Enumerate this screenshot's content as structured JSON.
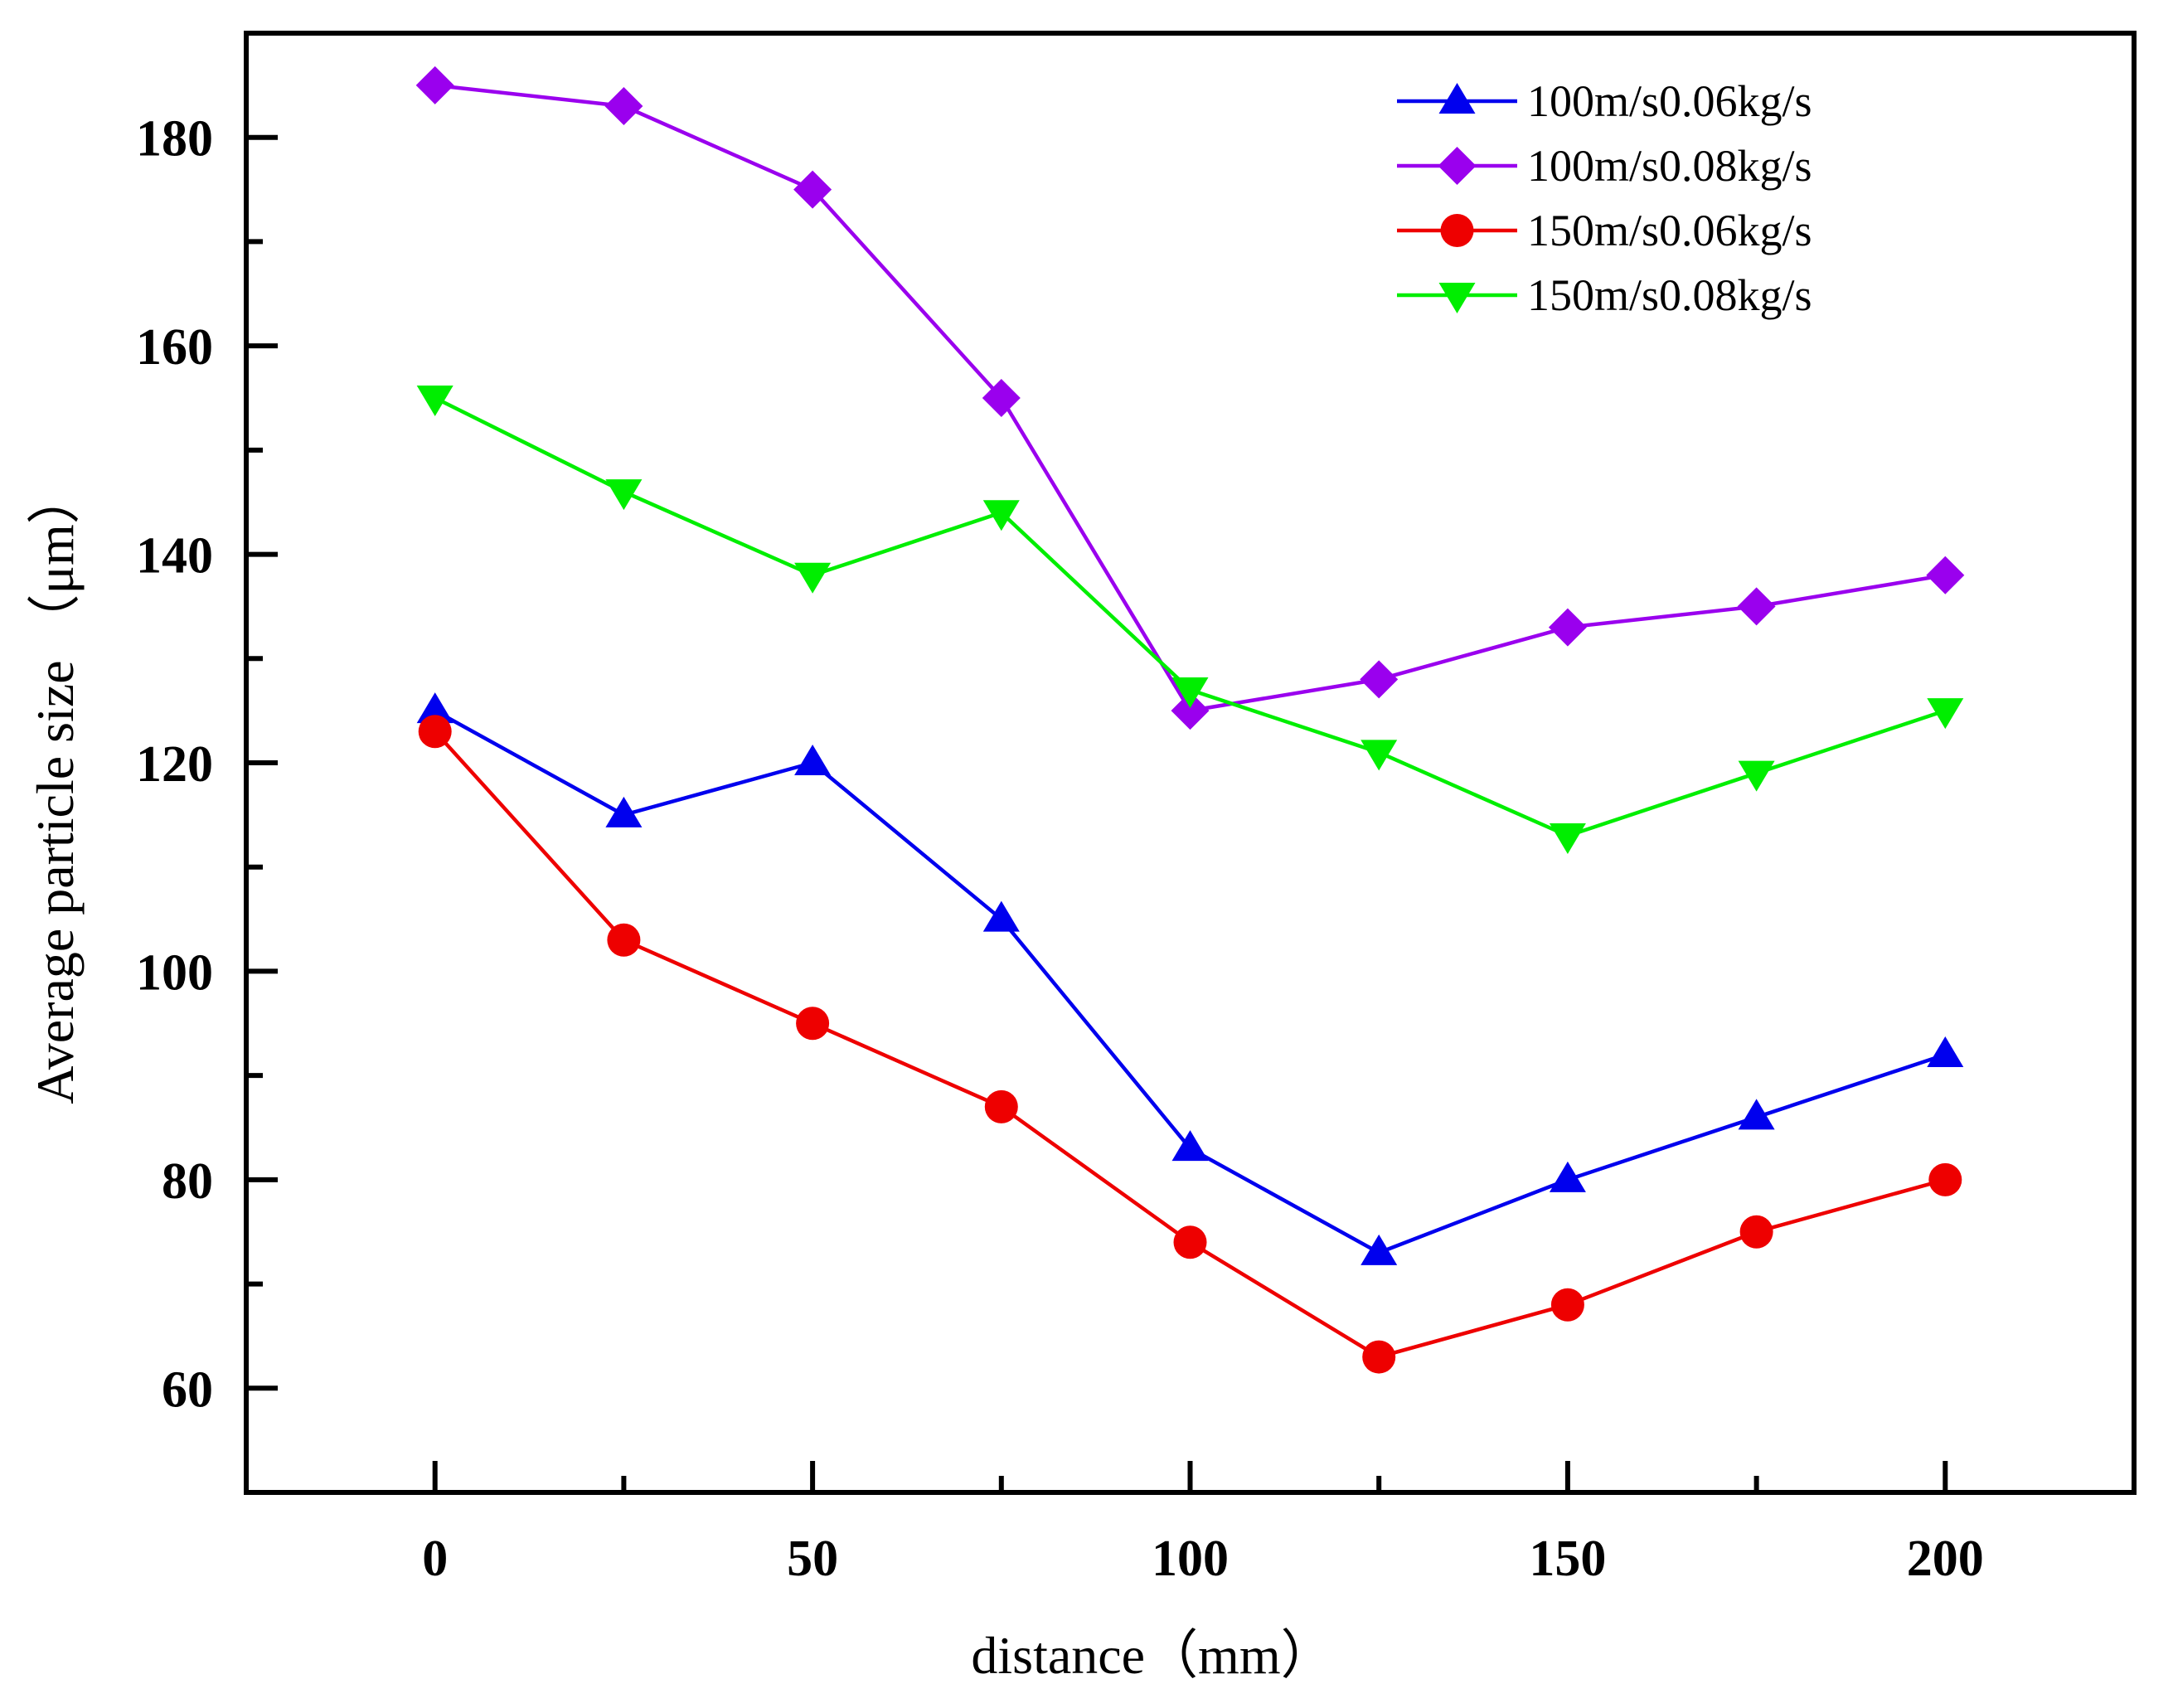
{
  "chart_data": {
    "type": "line",
    "title": "",
    "xlabel": "distance（mm）",
    "ylabel": "Average particle size （μm）",
    "xlim": [
      -25,
      225
    ],
    "ylim": [
      50,
      190
    ],
    "x_ticks": [
      0,
      50,
      100,
      150,
      200
    ],
    "x_minor_ticks": [
      25,
      75,
      125,
      175
    ],
    "y_ticks": [
      60,
      80,
      100,
      120,
      140,
      160,
      180
    ],
    "y_minor_ticks": [
      70,
      90,
      110,
      130,
      150,
      170
    ],
    "x": [
      0,
      25,
      50,
      75,
      100,
      125,
      150,
      175,
      200
    ],
    "grid": false,
    "legend_position": "top-right",
    "series": [
      {
        "name": "100m/s0.06kg/s",
        "color": "#0000ee",
        "marker": "triangle-up",
        "values": [
          125,
          115,
          120,
          105,
          83,
          73,
          80,
          86,
          92
        ]
      },
      {
        "name": "100m/s0.08kg/s",
        "color": "#9a00ee",
        "marker": "diamond",
        "values": [
          185,
          183,
          175,
          155,
          125,
          128,
          133,
          135,
          138
        ]
      },
      {
        "name": "150m/s0.06kg/s",
        "color": "#ee0000",
        "marker": "circle",
        "values": [
          123,
          103,
          95,
          87,
          74,
          63,
          68,
          75,
          80
        ]
      },
      {
        "name": "150m/s0.08kg/s",
        "color": "#00ee00",
        "marker": "triangle-down",
        "values": [
          155,
          146,
          138,
          144,
          127,
          121,
          113,
          119,
          125
        ]
      }
    ]
  }
}
